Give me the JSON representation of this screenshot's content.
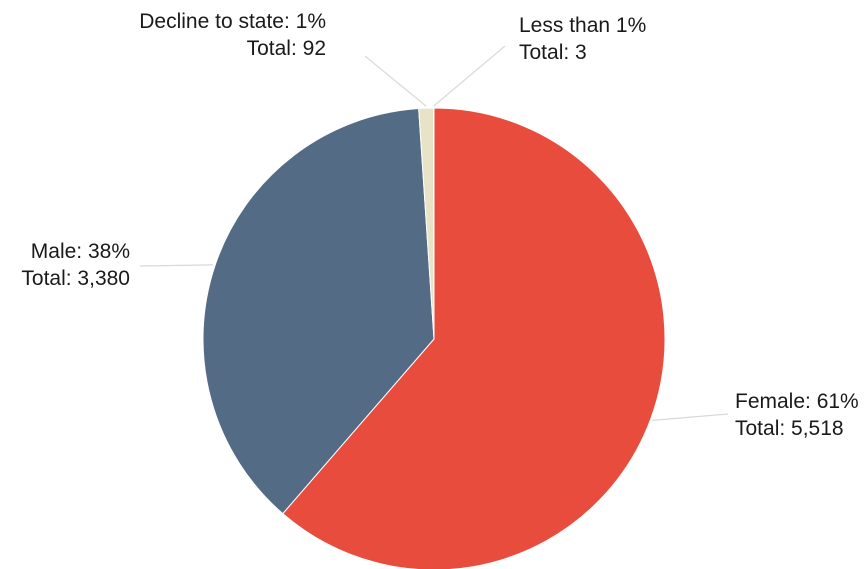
{
  "chart_data": {
    "type": "pie",
    "slices": [
      {
        "name": "Female",
        "value": 5518,
        "label": "Female: 61%",
        "total_label": "Total: 5,518",
        "color": "#e84c3d"
      },
      {
        "name": "Male",
        "value": 3380,
        "label": "Male: 38%",
        "total_label": "Total: 3,380",
        "color": "#536b85"
      },
      {
        "name": "Decline to state",
        "value": 92,
        "label": "Decline to state: 1%",
        "total_label": "Total: 92",
        "color": "#e8e3c7"
      },
      {
        "name": "Less than 1%",
        "value": 3,
        "label": "Less than 1%",
        "total_label": "Total: 3",
        "color": "#f0ecd6"
      }
    ],
    "start": "12 o'clock",
    "direction": "clockwise",
    "legend": "none"
  }
}
